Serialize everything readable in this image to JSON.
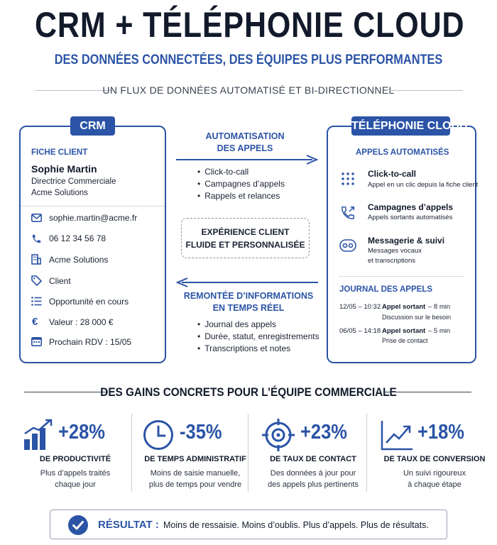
{
  "header": {
    "title": "CRM + TÉLÉPHONIE CLOUD",
    "subtitle": "DES DONNÉES CONNECTÉES, DES ÉQUIPES PLUS PERFORMANTES",
    "flux": "UN FLUX DE DONNÉES AUTOMATISÉ ET BI-DIRECTIONNEL"
  },
  "crm": {
    "tab": "CRM",
    "section": "FICHE CLIENT",
    "name": "Sophie Martin",
    "role": "Directrice Commerciale",
    "company": "Acme Solutions",
    "fields": [
      {
        "icon": "mail-icon",
        "text": "sophie.martin@acme.fr"
      },
      {
        "icon": "phone-icon",
        "text": "06 12 34 56 78"
      },
      {
        "icon": "building-icon",
        "text": "Acme Solutions"
      },
      {
        "icon": "tag-icon",
        "text": "Client"
      },
      {
        "icon": "list-icon",
        "text": "Opportunité en cours"
      },
      {
        "icon": "euro-icon",
        "text": "Valeur : 28 000 €"
      },
      {
        "icon": "calendar-icon",
        "text": "Prochain RDV : 15/05"
      }
    ]
  },
  "middle": {
    "top_label_1": "AUTOMATISATION",
    "top_label_2": "DES APPELS",
    "top_bullets": [
      "Click-to-call",
      "Campagnes d’appels",
      "Rappels et relances"
    ],
    "experience_1": "EXPÉRIENCE CLIENT",
    "experience_2": "FLUIDE ET PERSONNALISÉE",
    "bottom_label_1": "REMONTÉE D’INFORMATIONS",
    "bottom_label_2": "EN TEMPS RÉEL",
    "bottom_bullets": [
      "Journal des appels",
      "Durée, statut, enregistrements",
      "Transcriptions et notes"
    ]
  },
  "telephony": {
    "tab": "TÉLÉPHONIE CLOUD",
    "section": "APPELS AUTOMATISÉS",
    "features": [
      {
        "icon": "dialpad-icon",
        "title": "Click-to-call",
        "desc_1": "Appel en un clic depuis la fiche client",
        "desc_2": ""
      },
      {
        "icon": "phone-outgoing-icon",
        "title": "Campagnes d’appels",
        "desc_1": "Appels sortants automatisés",
        "desc_2": ""
      },
      {
        "icon": "voicemail-icon",
        "title": "Messagerie & suivi",
        "desc_1": "Messages vocaux",
        "desc_2": "et transcriptions"
      }
    ],
    "journal_title": "JOURNAL DES APPELS",
    "journal": [
      {
        "date": "12/05 – 10:32",
        "type": "Appel sortant",
        "duration": "– 8 min",
        "note": "Discussion sur le besoin"
      },
      {
        "date": "06/05 – 14:18",
        "type": "Appel sortant",
        "duration": "– 5 min",
        "note": "Prise de contact"
      }
    ]
  },
  "gains": {
    "title": "DES GAINS CONCRETS POUR L’ÉQUIPE COMMERCIALE",
    "stats": [
      {
        "icon": "bar-chart-icon",
        "value": "+28%",
        "label": "DE PRODUCTIVITÉ",
        "desc_1": "Plus d’appels traités",
        "desc_2": "chaque jour"
      },
      {
        "icon": "clock-icon",
        "value": "-35%",
        "label": "DE TEMPS ADMINISTRATIF",
        "desc_1": "Moins de saisie manuelle,",
        "desc_2": "plus de temps pour vendre"
      },
      {
        "icon": "target-icon",
        "value": "+23%",
        "label": "DE TAUX DE CONTACT",
        "desc_1": "Des données à jour pour",
        "desc_2": "des appels plus pertinents"
      },
      {
        "icon": "trend-up-icon",
        "value": "+18%",
        "label": "DE TAUX DE CONVERSION",
        "desc_1": "Un suivi rigoureux",
        "desc_2": "à chaque étape"
      }
    ]
  },
  "result": {
    "label": "RÉSULTAT :",
    "text": "Moins de ressaisie. Moins d’oublis. Plus d’appels. Plus de résultats."
  },
  "colors": {
    "accent": "#2b54a6",
    "dark": "#121a2b",
    "border": "#9aa3b3"
  }
}
